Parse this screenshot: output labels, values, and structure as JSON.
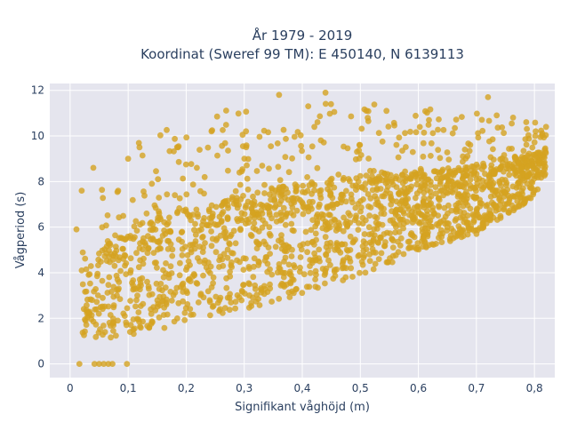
{
  "chart_data": {
    "type": "scatter",
    "title_lines": [
      "År 1979 - 2019",
      "Koordinat (Sweref 99 TM): E 450140, N 6139113"
    ],
    "xlabel": "Signifikant våghöjd (m)",
    "ylabel": "Vågperiod (s)",
    "xlim": [
      -0.035,
      0.835
    ],
    "ylim": [
      -0.6,
      12.3
    ],
    "x_ticks": [
      0,
      0.1,
      0.2,
      0.3,
      0.4,
      0.5,
      0.6,
      0.7,
      0.8
    ],
    "x_tick_labels": [
      "0",
      "0,1",
      "0,2",
      "0,3",
      "0,4",
      "0,5",
      "0,6",
      "0,7",
      "0,8"
    ],
    "y_ticks": [
      0,
      2,
      4,
      6,
      8,
      10,
      12
    ],
    "y_tick_labels": [
      "0",
      "2",
      "4",
      "6",
      "8",
      "10",
      "12"
    ],
    "grid": true,
    "legend": "none",
    "point_color": "#d4a220",
    "plot_background": "#e5e5ee",
    "envelope": [
      {
        "x": 0.02,
        "ymin": 1.2,
        "ymax": 5.9
      },
      {
        "x": 0.05,
        "ymin": 1.1,
        "ymax": 8.3
      },
      {
        "x": 0.1,
        "ymin": 1.2,
        "ymax": 9.5
      },
      {
        "x": 0.15,
        "ymin": 1.5,
        "ymax": 10.2
      },
      {
        "x": 0.2,
        "ymin": 1.8,
        "ymax": 10.6
      },
      {
        "x": 0.25,
        "ymin": 2.1,
        "ymax": 11.0
      },
      {
        "x": 0.3,
        "ymin": 2.4,
        "ymax": 11.3
      },
      {
        "x": 0.35,
        "ymin": 2.7,
        "ymax": 11.5
      },
      {
        "x": 0.4,
        "ymin": 3.1,
        "ymax": 11.7
      },
      {
        "x": 0.45,
        "ymin": 3.5,
        "ymax": 11.6
      },
      {
        "x": 0.5,
        "ymin": 3.9,
        "ymax": 11.6
      },
      {
        "x": 0.55,
        "ymin": 4.4,
        "ymax": 11.5
      },
      {
        "x": 0.6,
        "ymin": 4.8,
        "ymax": 11.3
      },
      {
        "x": 0.65,
        "ymin": 5.3,
        "ymax": 11.0
      },
      {
        "x": 0.7,
        "ymin": 5.8,
        "ymax": 11.0
      },
      {
        "x": 0.75,
        "ymin": 6.5,
        "ymax": 11.0
      },
      {
        "x": 0.8,
        "ymin": 7.3,
        "ymax": 10.7
      },
      {
        "x": 0.82,
        "ymin": 8.4,
        "ymax": 10.3
      }
    ],
    "outlier_points": [
      {
        "x": 0.016,
        "y": 0.0
      },
      {
        "x": 0.042,
        "y": 0.0
      },
      {
        "x": 0.05,
        "y": 0.0
      },
      {
        "x": 0.058,
        "y": 0.0
      },
      {
        "x": 0.066,
        "y": 0.0
      },
      {
        "x": 0.073,
        "y": 0.0
      },
      {
        "x": 0.098,
        "y": 0.0
      },
      {
        "x": 0.011,
        "y": 5.9
      },
      {
        "x": 0.02,
        "y": 4.1
      },
      {
        "x": 0.04,
        "y": 8.6
      },
      {
        "x": 0.02,
        "y": 7.6
      },
      {
        "x": 0.36,
        "y": 11.8
      },
      {
        "x": 0.44,
        "y": 11.9
      },
      {
        "x": 0.72,
        "y": 11.7
      },
      {
        "x": 0.82,
        "y": 10.4
      },
      {
        "x": 0.1,
        "y": 9.0
      },
      {
        "x": 0.78,
        "y": 8.3
      },
      {
        "x": 0.7,
        "y": 5.7
      }
    ]
  }
}
